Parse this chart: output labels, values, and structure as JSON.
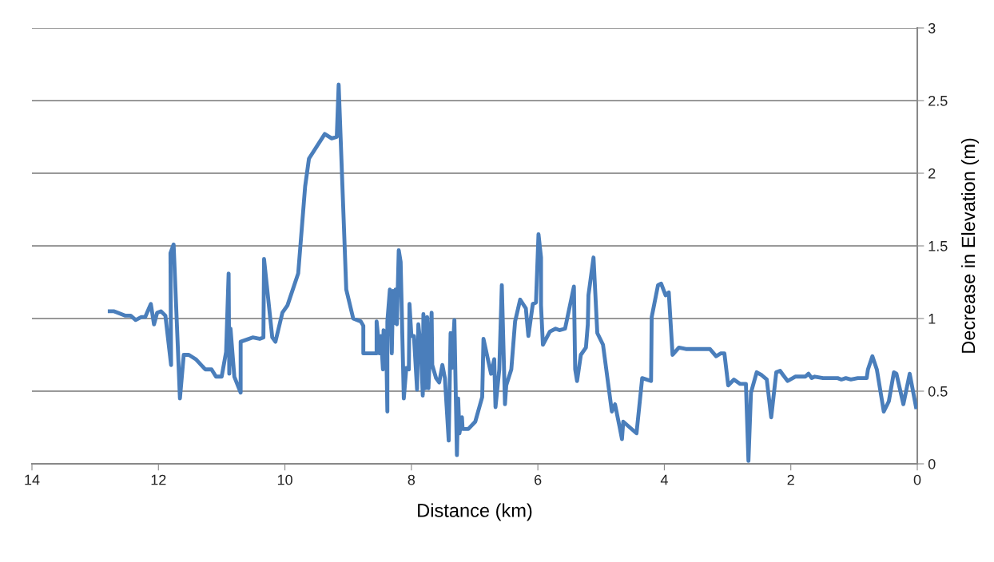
{
  "chart_data": {
    "type": "line",
    "xlabel": "Distance (km)",
    "ylabel": "Decrease in Elevation (m)",
    "xlim": [
      14,
      0
    ],
    "xticks": [
      14,
      12,
      10,
      8,
      6,
      4,
      2,
      0
    ],
    "ylim": [
      0,
      3
    ],
    "yticks": [
      0,
      0.5,
      1,
      1.5,
      2,
      2.5,
      3
    ],
    "grid": "y",
    "marker": "none",
    "line_style": "solid",
    "x": [
      12.77,
      12.7,
      12.53,
      12.44,
      12.36,
      12.27,
      12.21,
      12.12,
      12.07,
      12.02,
      11.96,
      11.89,
      11.8,
      11.81,
      11.76,
      11.66,
      11.6,
      11.52,
      11.41,
      11.26,
      11.16,
      11.09,
      11.0,
      10.93,
      10.89,
      10.88,
      10.86,
      10.8,
      10.7,
      10.7,
      10.51,
      10.4,
      10.34,
      10.33,
      10.2,
      10.15,
      10.04,
      9.96,
      9.79,
      9.68,
      9.62,
      9.37,
      9.26,
      9.18,
      9.15,
      9.03,
      8.92,
      8.8,
      8.76,
      8.76,
      8.55,
      8.55,
      8.5,
      8.48,
      8.45,
      8.44,
      8.4,
      8.38,
      8.38,
      8.34,
      8.31,
      8.29,
      8.27,
      8.25,
      8.23,
      8.2,
      8.17,
      8.12,
      8.08,
      8.04,
      8.03,
      8.0,
      7.96,
      7.91,
      7.89,
      7.85,
      7.82,
      7.81,
      7.78,
      7.75,
      7.73,
      7.68,
      7.67,
      7.61,
      7.56,
      7.51,
      7.47,
      7.41,
      7.38,
      7.36,
      7.32,
      7.28,
      7.26,
      7.24,
      7.2,
      7.19,
      7.1,
      6.99,
      6.88,
      6.86,
      6.74,
      6.69,
      6.67,
      6.61,
      6.57,
      6.52,
      6.5,
      6.42,
      6.36,
      6.28,
      6.19,
      6.15,
      6.08,
      6.03,
      5.99,
      5.95,
      5.95,
      5.92,
      5.81,
      5.72,
      5.66,
      5.57,
      5.43,
      5.41,
      5.38,
      5.32,
      5.24,
      5.21,
      5.2,
      5.12,
      5.06,
      4.97,
      4.83,
      4.78,
      4.71,
      4.67,
      4.65,
      4.44,
      4.35,
      4.21,
      4.2,
      4.1,
      4.05,
      3.98,
      3.93,
      3.87,
      3.77,
      3.66,
      3.28,
      3.18,
      3.11,
      3.05,
      2.99,
      2.9,
      2.8,
      2.71,
      2.67,
      2.63,
      2.54,
      2.46,
      2.38,
      2.31,
      2.23,
      2.17,
      2.12,
      2.05,
      1.93,
      1.77,
      1.72,
      1.67,
      1.62,
      1.49,
      1.26,
      1.2,
      1.13,
      1.05,
      0.94,
      0.8,
      0.78,
      0.71,
      0.64,
      0.53,
      0.45,
      0.37,
      0.33,
      0.22,
      0.12,
      0.02
    ],
    "series": [
      {
        "color": "#4a7ebb",
        "values": [
          1.05,
          1.05,
          1.02,
          1.02,
          0.99,
          1.01,
          1.01,
          1.1,
          0.96,
          1.04,
          1.05,
          1.02,
          0.68,
          1.45,
          1.51,
          0.45,
          0.75,
          0.75,
          0.72,
          0.65,
          0.65,
          0.6,
          0.6,
          0.77,
          1.31,
          0.62,
          0.93,
          0.6,
          0.49,
          0.84,
          0.87,
          0.86,
          0.87,
          1.41,
          0.87,
          0.84,
          1.04,
          1.09,
          1.31,
          1.91,
          2.1,
          2.27,
          2.24,
          2.25,
          2.61,
          1.2,
          1.0,
          0.98,
          0.95,
          0.76,
          0.76,
          0.98,
          0.76,
          0.88,
          0.65,
          0.92,
          0.88,
          0.36,
          0.98,
          1.2,
          0.76,
          1.19,
          0.97,
          1.2,
          0.96,
          1.47,
          1.39,
          0.45,
          0.66,
          0.65,
          1.1,
          0.88,
          0.88,
          0.51,
          0.96,
          0.79,
          0.47,
          1.03,
          0.52,
          1.01,
          0.52,
          1.04,
          0.68,
          0.59,
          0.56,
          0.68,
          0.59,
          0.16,
          0.9,
          0.66,
          0.99,
          0.06,
          0.45,
          0.21,
          0.32,
          0.24,
          0.24,
          0.29,
          0.46,
          0.86,
          0.62,
          0.72,
          0.39,
          0.65,
          1.23,
          0.41,
          0.54,
          0.65,
          0.98,
          1.13,
          1.07,
          0.88,
          1.1,
          1.11,
          1.58,
          1.42,
          1.09,
          0.82,
          0.91,
          0.93,
          0.92,
          0.93,
          1.22,
          0.65,
          0.57,
          0.75,
          0.8,
          0.96,
          1.16,
          1.42,
          0.9,
          0.82,
          0.36,
          0.41,
          0.26,
          0.17,
          0.29,
          0.21,
          0.59,
          0.57,
          1.01,
          1.23,
          1.24,
          1.16,
          1.18,
          0.75,
          0.8,
          0.79,
          0.79,
          0.74,
          0.76,
          0.76,
          0.54,
          0.58,
          0.55,
          0.55,
          0.02,
          0.49,
          0.63,
          0.61,
          0.58,
          0.32,
          0.63,
          0.64,
          0.61,
          0.57,
          0.6,
          0.6,
          0.62,
          0.59,
          0.6,
          0.59,
          0.59,
          0.58,
          0.59,
          0.58,
          0.59,
          0.59,
          0.65,
          0.74,
          0.65,
          0.36,
          0.43,
          0.63,
          0.62,
          0.41,
          0.62,
          0.39
        ]
      }
    ]
  }
}
